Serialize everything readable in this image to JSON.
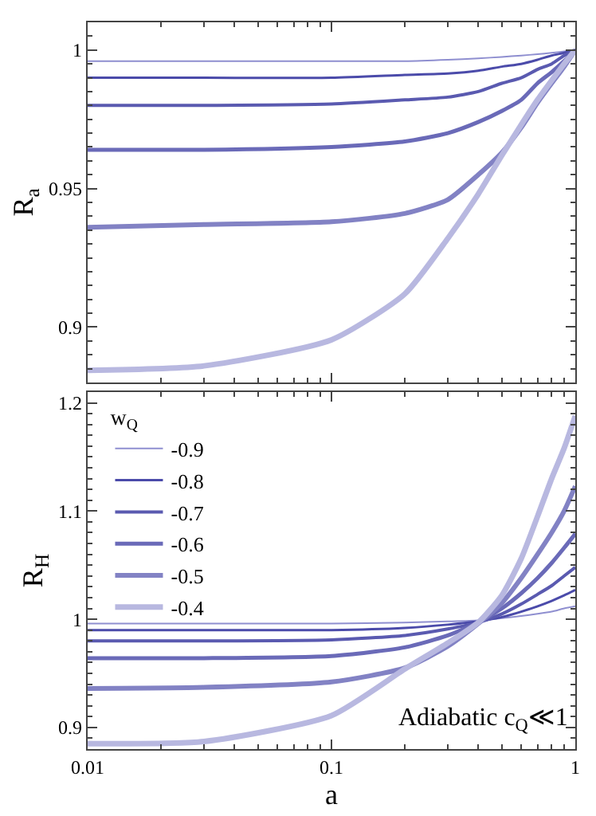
{
  "chart_data": [
    {
      "type": "line",
      "ylabel": "R$_{a}$",
      "x": [
        0.01,
        0.03,
        0.1,
        0.2,
        0.3,
        0.4,
        0.5,
        0.6,
        0.7,
        0.8,
        0.9,
        1
      ],
      "log": "x",
      "xlim": [
        0.01,
        1
      ],
      "xticks": [
        0.01,
        0.1,
        1
      ],
      "ylim": [
        0.88,
        1.01
      ],
      "yticks": [
        0.9,
        0.95,
        1
      ],
      "tick_labels": "y",
      "legend": false,
      "grid": false,
      "series": [
        {
          "color": "#8f8fd0",
          "values": [
            0.996,
            0.996,
            0.996,
            0.996,
            0.9965,
            0.997,
            0.9975,
            0.998,
            0.9985,
            0.999,
            0.9995,
            1
          ]
        },
        {
          "color": "#4b4baa",
          "values": [
            0.99,
            0.99,
            0.99,
            0.991,
            0.9915,
            0.9925,
            0.994,
            0.995,
            0.9965,
            0.998,
            0.999,
            1
          ]
        },
        {
          "color": "#5a5ab0",
          "values": [
            0.98,
            0.98,
            0.9805,
            0.982,
            0.983,
            0.985,
            0.988,
            0.99,
            0.993,
            0.995,
            0.998,
            1
          ]
        },
        {
          "color": "#6a6ab8",
          "values": [
            0.964,
            0.964,
            0.965,
            0.967,
            0.97,
            0.974,
            0.978,
            0.982,
            0.988,
            0.992,
            0.996,
            1
          ]
        },
        {
          "color": "#8282c4",
          "values": [
            0.936,
            0.937,
            0.938,
            0.941,
            0.946,
            0.955,
            0.963,
            0.972,
            0.981,
            0.988,
            0.994,
            1
          ]
        },
        {
          "color": "#b8b8e0",
          "values": [
            0.8844,
            0.886,
            0.8954,
            0.912,
            0.932,
            0.948,
            0.962,
            0.973,
            0.982,
            0.989,
            0.995,
            1
          ]
        }
      ]
    },
    {
      "type": "line",
      "xlabel": "a",
      "ylabel": "R$_{H}$",
      "legend_title": "w$_{Q}$",
      "annotations": [
        "Adiabatic c$_{Q}$≪1"
      ],
      "x": [
        0.01,
        0.03,
        0.1,
        0.2,
        0.3,
        0.4,
        0.5,
        0.6,
        0.7,
        0.8,
        0.9,
        1
      ],
      "log": "x",
      "xlim": [
        0.01,
        1
      ],
      "xticks": [
        0.01,
        0.1,
        1
      ],
      "ylim": [
        0.88,
        1.21
      ],
      "yticks": [
        0.9,
        1,
        1.1,
        1.2
      ],
      "legend": "top left",
      "grid": false,
      "series": [
        {
          "name": "-0.9",
          "color": "#8f8fd0",
          "values": [
            0.996,
            0.996,
            0.996,
            0.997,
            0.998,
            0.999,
            1.001,
            1.003,
            1.005,
            1.007,
            1.01,
            1.012
          ]
        },
        {
          "name": "-0.8",
          "color": "#4b4baa",
          "values": [
            0.99,
            0.99,
            0.99,
            0.992,
            0.995,
            0.998,
            1.002,
            1.007,
            1.012,
            1.017,
            1.022,
            1.027
          ]
        },
        {
          "name": "-0.7",
          "color": "#5a5ab0",
          "values": [
            0.98,
            0.98,
            0.981,
            0.985,
            0.991,
            0.997,
            1.005,
            1.014,
            1.023,
            1.031,
            1.04,
            1.048
          ]
        },
        {
          "name": "-0.6",
          "color": "#6a6ab8",
          "values": [
            0.964,
            0.964,
            0.966,
            0.974,
            0.985,
            0.997,
            1.01,
            1.024,
            1.038,
            1.052,
            1.066,
            1.079
          ]
        },
        {
          "name": "-0.5",
          "color": "#8282c4",
          "values": [
            0.936,
            0.937,
            0.942,
            0.955,
            0.975,
            0.996,
            1.015,
            1.038,
            1.06,
            1.08,
            1.1,
            1.123
          ]
        },
        {
          "name": "-0.4",
          "color": "#b8b8e0",
          "values": [
            0.885,
            0.887,
            0.911,
            0.954,
            0.978,
            0.997,
            1.022,
            1.056,
            1.095,
            1.13,
            1.158,
            1.188
          ]
        }
      ]
    }
  ]
}
